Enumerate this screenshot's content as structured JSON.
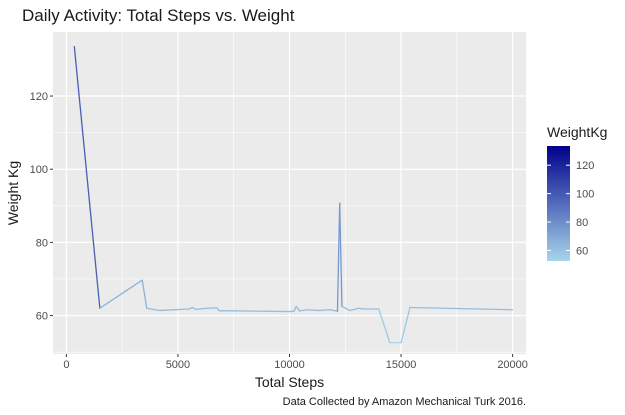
{
  "chart_data": {
    "type": "line",
    "title": "Daily Activity: Total Steps vs. Weight",
    "xlabel": "Total Steps",
    "ylabel": "Weight Kg",
    "caption": "Data Collected by Amazon Mechanical Turk 2016.",
    "xlim": [
      -600,
      20600
    ],
    "ylim": [
      49.5,
      137.5
    ],
    "x_ticks": [
      0,
      5000,
      10000,
      15000,
      20000
    ],
    "x_tick_labels": [
      "0",
      "5000",
      "10000",
      "15000",
      "20000"
    ],
    "y_ticks": [
      60,
      80,
      100,
      120
    ],
    "y_tick_labels": [
      "60",
      "80",
      "100",
      "120"
    ],
    "grid": true,
    "legend": {
      "title": "WeightKg",
      "position": "right",
      "type": "colorbar",
      "min": 52.6,
      "max": 133.5,
      "ticks": [
        60,
        80,
        100,
        120
      ],
      "tick_labels": [
        "60",
        "80",
        "100",
        "120"
      ],
      "low_color": "#a6d6ea",
      "high_color": "#00008b"
    },
    "points": [
      {
        "x": 356,
        "y": 133.5
      },
      {
        "x": 1500,
        "y": 62.0
      },
      {
        "x": 3400,
        "y": 69.7
      },
      {
        "x": 3600,
        "y": 62.0
      },
      {
        "x": 4200,
        "y": 61.4
      },
      {
        "x": 5500,
        "y": 61.8
      },
      {
        "x": 5650,
        "y": 62.2
      },
      {
        "x": 5800,
        "y": 61.7
      },
      {
        "x": 6300,
        "y": 62.0
      },
      {
        "x": 6750,
        "y": 62.1
      },
      {
        "x": 6850,
        "y": 61.3
      },
      {
        "x": 7500,
        "y": 61.3
      },
      {
        "x": 10000,
        "y": 61.1
      },
      {
        "x": 10200,
        "y": 61.2
      },
      {
        "x": 10300,
        "y": 62.5
      },
      {
        "x": 10450,
        "y": 61.3
      },
      {
        "x": 10800,
        "y": 61.6
      },
      {
        "x": 11300,
        "y": 61.4
      },
      {
        "x": 11800,
        "y": 61.6
      },
      {
        "x": 12150,
        "y": 61.2
      },
      {
        "x": 12250,
        "y": 90.7
      },
      {
        "x": 12350,
        "y": 62.5
      },
      {
        "x": 12700,
        "y": 61.4
      },
      {
        "x": 13100,
        "y": 62.0
      },
      {
        "x": 13300,
        "y": 61.8
      },
      {
        "x": 13500,
        "y": 61.8
      },
      {
        "x": 14000,
        "y": 61.8
      },
      {
        "x": 14500,
        "y": 52.6
      },
      {
        "x": 15000,
        "y": 52.6
      },
      {
        "x": 15400,
        "y": 62.2
      },
      {
        "x": 20000,
        "y": 61.6
      }
    ]
  }
}
